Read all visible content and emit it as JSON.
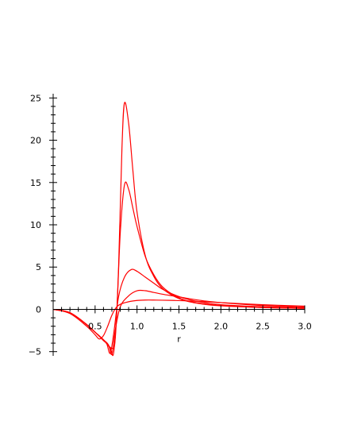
{
  "chart_data": {
    "type": "line",
    "title": "",
    "xlabel": "r",
    "ylabel": "",
    "xlim": [
      0.0,
      3.0
    ],
    "ylim": [
      -5.5,
      25.5
    ],
    "x_ticks": [
      0.5,
      1.0,
      1.5,
      2.0,
      2.5,
      3.0
    ],
    "x_tick_labels": [
      "0.5",
      "1.0",
      "1.5",
      "2.0",
      "2.5",
      "3.0"
    ],
    "y_ticks": [
      -5,
      0,
      5,
      10,
      15,
      20,
      25
    ],
    "y_tick_labels": [
      "−5",
      "0",
      "5",
      "10",
      "15",
      "20",
      "25"
    ],
    "grid": false,
    "legend": "none",
    "line_color": "#ff0000",
    "series": [
      {
        "x": [
          0.0,
          0.2,
          0.4,
          0.5,
          0.6,
          0.7,
          0.74,
          0.78,
          0.82,
          0.85,
          0.9,
          0.95,
          1.0,
          1.1,
          1.2,
          1.3,
          1.45,
          1.6,
          1.8,
          2.0,
          2.5,
          3.0
        ],
        "y": [
          0.0,
          -0.4,
          -1.8,
          -2.7,
          -3.6,
          -4.6,
          -3.5,
          5.0,
          19.0,
          24.4,
          22.0,
          16.5,
          11.5,
          6.3,
          3.9,
          2.5,
          1.5,
          0.95,
          0.6,
          0.42,
          0.22,
          0.12
        ]
      },
      {
        "x": [
          0.0,
          0.2,
          0.4,
          0.5,
          0.6,
          0.68,
          0.72,
          0.76,
          0.8,
          0.85,
          0.9,
          0.95,
          1.0,
          1.1,
          1.2,
          1.3,
          1.45,
          1.6,
          1.8,
          2.0,
          2.5,
          3.0
        ],
        "y": [
          0.0,
          -0.4,
          -1.8,
          -2.7,
          -3.6,
          -4.6,
          -5.2,
          0.0,
          9.0,
          14.7,
          14.2,
          12.0,
          9.8,
          6.2,
          4.1,
          2.7,
          1.6,
          1.0,
          0.65,
          0.45,
          0.22,
          0.12
        ]
      },
      {
        "x": [
          0.0,
          0.2,
          0.4,
          0.5,
          0.6,
          0.64,
          0.68,
          0.72,
          0.78,
          0.85,
          0.93,
          1.0,
          1.1,
          1.2,
          1.3,
          1.45,
          1.6,
          1.8,
          2.0,
          2.5,
          3.0
        ],
        "y": [
          0.0,
          -0.4,
          -1.8,
          -2.7,
          -3.7,
          -4.1,
          -5.2,
          -3.0,
          1.5,
          3.8,
          4.7,
          4.5,
          3.8,
          3.1,
          2.4,
          1.7,
          1.2,
          0.8,
          0.55,
          0.3,
          0.18
        ]
      },
      {
        "x": [
          0.0,
          0.2,
          0.4,
          0.5,
          0.6,
          0.66,
          0.7,
          0.74,
          0.8,
          0.9,
          1.0,
          1.1,
          1.2,
          1.3,
          1.45,
          1.6,
          1.8,
          2.0,
          2.5,
          3.0
        ],
        "y": [
          0.0,
          -0.4,
          -1.8,
          -2.7,
          -3.6,
          -4.2,
          -5.3,
          -2.5,
          0.3,
          1.6,
          2.2,
          2.2,
          2.0,
          1.8,
          1.55,
          1.3,
          1.0,
          0.8,
          0.45,
          0.28
        ]
      },
      {
        "x": [
          0.0,
          0.2,
          0.4,
          0.5,
          0.55,
          0.6,
          0.65,
          0.7,
          0.75,
          0.8,
          0.9,
          1.0,
          1.1,
          1.2,
          1.3,
          1.45,
          1.6,
          1.8,
          2.0,
          2.5,
          3.0
        ],
        "y": [
          0.0,
          -0.5,
          -2.0,
          -3.0,
          -3.5,
          -3.1,
          -2.0,
          -0.7,
          0.2,
          0.6,
          0.9,
          1.05,
          1.1,
          1.1,
          1.08,
          1.05,
          1.0,
          0.9,
          0.8,
          0.55,
          0.38
        ]
      }
    ]
  }
}
